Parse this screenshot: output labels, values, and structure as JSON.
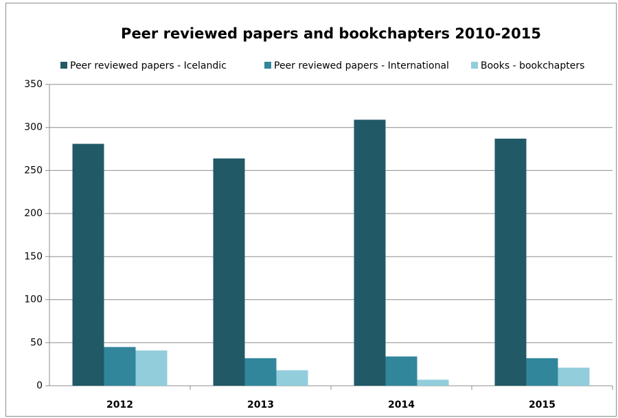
{
  "chart_data": {
    "type": "bar",
    "title": "Peer reviewed papers and bookchapters 2010-2015",
    "categories": [
      "2012",
      "2013",
      "2014",
      "2015"
    ],
    "series": [
      {
        "name": "Peer reviewed papers - Icelandic",
        "color": "#215967",
        "values": [
          281,
          264,
          309,
          287
        ]
      },
      {
        "name": "Peer reviewed papers - International",
        "color": "#31869b",
        "values": [
          45,
          32,
          34,
          32
        ]
      },
      {
        "name": "Books - bookchapters",
        "color": "#92cddc",
        "values": [
          41,
          18,
          7,
          21
        ]
      }
    ],
    "ylim": [
      0,
      350
    ],
    "yticks": [
      0,
      50,
      100,
      150,
      200,
      250,
      300,
      350
    ],
    "grid": true,
    "legend": "top"
  }
}
